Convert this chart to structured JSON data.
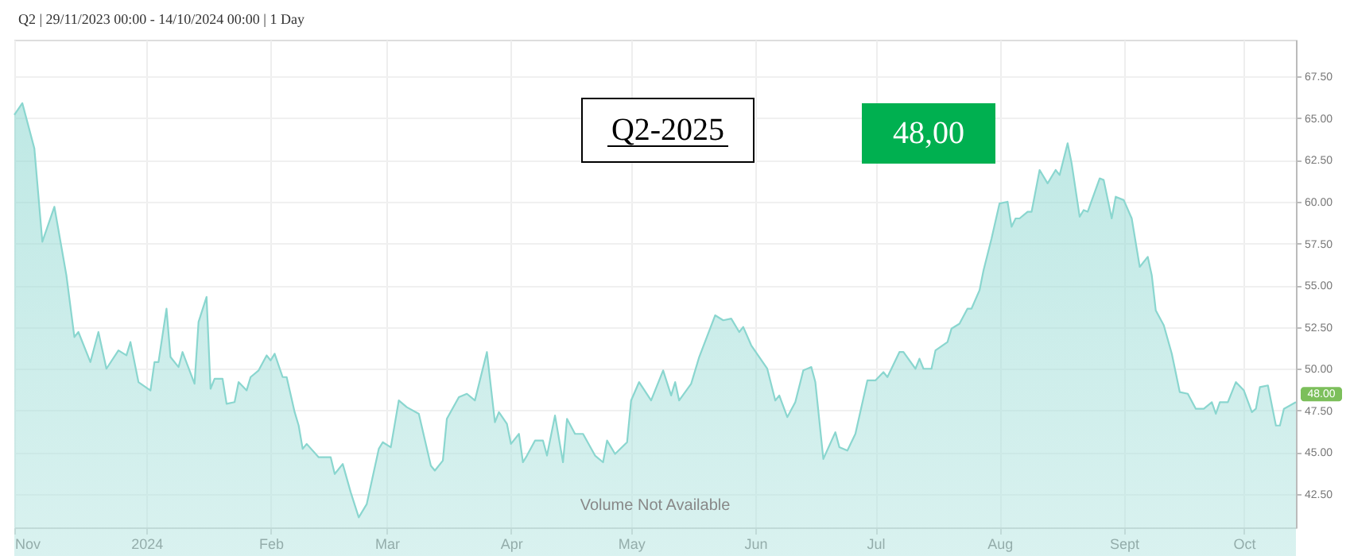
{
  "chart_data": {
    "type": "area",
    "title": "Q2 | 29/11/2023 00:00 - 14/10/2024 00:00 | 1 Day",
    "x": [
      "2023-11-29",
      "2023-12-01",
      "2023-12-04",
      "2023-12-06",
      "2023-12-09",
      "2023-12-12",
      "2023-12-14",
      "2023-12-15",
      "2023-12-18",
      "2023-12-20",
      "2023-12-22",
      "2023-12-25",
      "2023-12-27",
      "2023-12-28",
      "2023-12-30",
      "2024-01-02",
      "2024-01-03",
      "2024-01-04",
      "2024-01-06",
      "2024-01-07",
      "2024-01-09",
      "2024-01-10",
      "2024-01-13",
      "2024-01-14",
      "2024-01-16",
      "2024-01-17",
      "2024-01-18",
      "2024-01-20",
      "2024-01-21",
      "2024-01-23",
      "2024-01-24",
      "2024-01-26",
      "2024-01-27",
      "2024-01-29",
      "2024-01-31",
      "2024-02-01",
      "2024-02-02",
      "2024-02-04",
      "2024-02-05",
      "2024-02-07",
      "2024-02-08",
      "2024-02-09",
      "2024-02-10",
      "2024-02-13",
      "2024-02-16",
      "2024-02-17",
      "2024-02-19",
      "2024-02-21",
      "2024-02-23",
      "2024-02-25",
      "2024-02-28",
      "2024-02-29",
      "2024-03-02",
      "2024-03-04",
      "2024-03-06",
      "2024-03-09",
      "2024-03-12",
      "2024-03-13",
      "2024-03-15",
      "2024-03-16",
      "2024-03-19",
      "2024-03-21",
      "2024-03-23",
      "2024-03-26",
      "2024-03-28",
      "2024-03-29",
      "2024-03-31",
      "2024-04-01",
      "2024-04-03",
      "2024-04-04",
      "2024-04-05",
      "2024-04-07",
      "2024-04-09",
      "2024-04-10",
      "2024-04-12",
      "2024-04-14",
      "2024-04-15",
      "2024-04-17",
      "2024-04-19",
      "2024-04-22",
      "2024-04-24",
      "2024-04-25",
      "2024-04-27",
      "2024-04-30",
      "2024-05-01",
      "2024-05-03",
      "2024-05-06",
      "2024-05-09",
      "2024-05-11",
      "2024-05-12",
      "2024-05-13",
      "2024-05-16",
      "2024-05-18",
      "2024-05-22",
      "2024-05-24",
      "2024-05-26",
      "2024-05-28",
      "2024-05-29",
      "2024-05-31",
      "2024-06-04",
      "2024-06-06",
      "2024-06-07",
      "2024-06-09",
      "2024-06-11",
      "2024-06-13",
      "2024-06-15",
      "2024-06-16",
      "2024-06-18",
      "2024-06-21",
      "2024-06-22",
      "2024-06-24",
      "2024-06-26",
      "2024-06-29",
      "2024-07-01",
      "2024-07-03",
      "2024-07-04",
      "2024-07-07",
      "2024-07-08",
      "2024-07-11",
      "2024-07-12",
      "2024-07-13",
      "2024-07-15",
      "2024-07-16",
      "2024-07-19",
      "2024-07-20",
      "2024-07-22",
      "2024-07-24",
      "2024-07-25",
      "2024-07-27",
      "2024-07-28",
      "2024-07-30",
      "2024-08-01",
      "2024-08-03",
      "2024-08-04",
      "2024-08-05",
      "2024-08-06",
      "2024-08-08",
      "2024-08-09",
      "2024-08-11",
      "2024-08-13",
      "2024-08-15",
      "2024-08-16",
      "2024-08-18",
      "2024-08-19",
      "2024-08-21",
      "2024-08-22",
      "2024-08-23",
      "2024-08-26",
      "2024-08-27",
      "2024-08-29",
      "2024-08-30",
      "2024-09-01",
      "2024-09-03",
      "2024-09-05",
      "2024-09-07",
      "2024-09-08",
      "2024-09-09",
      "2024-09-11",
      "2024-09-13",
      "2024-09-15",
      "2024-09-17",
      "2024-09-19",
      "2024-09-21",
      "2024-09-23",
      "2024-09-24",
      "2024-09-25",
      "2024-09-27",
      "2024-09-29",
      "2024-10-01",
      "2024-10-03",
      "2024-10-04",
      "2024-10-05",
      "2024-10-07",
      "2024-10-09",
      "2024-10-10",
      "2024-10-11",
      "2024-10-14"
    ],
    "series": [
      {
        "color": "#8ad6cf",
        "values": [
          65.2,
          65.9,
          63.2,
          57.6,
          59.7,
          55.6,
          51.9,
          52.2,
          50.4,
          52.2,
          50.0,
          51.1,
          50.8,
          51.6,
          49.2,
          48.7,
          50.4,
          50.4,
          53.6,
          50.7,
          50.1,
          51.0,
          49.1,
          52.8,
          54.3,
          48.8,
          49.4,
          49.4,
          47.9,
          48.0,
          49.2,
          48.7,
          49.5,
          49.9,
          50.8,
          50.5,
          50.9,
          49.5,
          49.5,
          47.4,
          46.6,
          45.2,
          45.5,
          44.7,
          44.7,
          43.7,
          44.3,
          42.6,
          41.1,
          41.9,
          45.2,
          45.6,
          45.3,
          48.1,
          47.7,
          47.3,
          44.2,
          43.9,
          44.5,
          47.0,
          48.3,
          48.5,
          48.1,
          51.0,
          46.8,
          47.4,
          46.7,
          45.5,
          46.1,
          44.4,
          44.8,
          45.7,
          45.7,
          44.8,
          47.2,
          44.4,
          47.0,
          46.1,
          46.1,
          44.8,
          44.4,
          45.7,
          44.9,
          45.6,
          48.1,
          49.2,
          48.1,
          49.9,
          48.4,
          49.2,
          48.1,
          49.1,
          50.7,
          53.2,
          52.9,
          53.0,
          52.2,
          52.5,
          51.4,
          50.0,
          48.1,
          48.4,
          47.1,
          48.0,
          49.9,
          50.1,
          49.2,
          44.6,
          46.2,
          45.3,
          45.1,
          46.1,
          49.3,
          49.3,
          49.8,
          49.5,
          51.0,
          51.0,
          50.0,
          50.6,
          50.0,
          50.0,
          51.1,
          51.6,
          52.4,
          52.7,
          53.6,
          53.6,
          54.7,
          55.9,
          57.8,
          59.9,
          60.0,
          58.5,
          59.0,
          59.0,
          59.4,
          59.4,
          61.9,
          61.1,
          61.9,
          61.6,
          63.5,
          62.3,
          59.1,
          59.5,
          59.4,
          61.4,
          61.3,
          59.0,
          60.3,
          60.1,
          59.0,
          56.1,
          56.7,
          55.6,
          53.5,
          52.6,
          50.9,
          48.6,
          48.5,
          47.6,
          47.6,
          48.0,
          47.3,
          48.0,
          48.0,
          49.2,
          48.7,
          47.4,
          47.6,
          48.9,
          49.0,
          46.6,
          46.6,
          47.6,
          48.0
        ]
      }
    ],
    "xlim": [
      "2023-11-29",
      "2024-10-14"
    ],
    "xticks": [
      {
        "value": "2023-11-29",
        "label": "Nov"
      },
      {
        "value": "2024-01-01",
        "label": "2024"
      },
      {
        "value": "2024-02-01",
        "label": "Feb"
      },
      {
        "value": "2024-03-01",
        "label": "Mar"
      },
      {
        "value": "2024-04-01",
        "label": "Apr"
      },
      {
        "value": "2024-05-01",
        "label": "May"
      },
      {
        "value": "2024-06-01",
        "label": "Jun"
      },
      {
        "value": "2024-07-01",
        "label": "Jul"
      },
      {
        "value": "2024-08-01",
        "label": "Aug"
      },
      {
        "value": "2024-09-01",
        "label": "Sept"
      },
      {
        "value": "2024-10-01",
        "label": "Oct"
      }
    ],
    "ylim": [
      40.5,
      69.7
    ],
    "yticks": [
      {
        "value": 42.5,
        "label": "42.50"
      },
      {
        "value": 45,
        "label": "45.00"
      },
      {
        "value": 47.5,
        "label": "47.50"
      },
      {
        "value": 50,
        "label": "50.00"
      },
      {
        "value": 52.5,
        "label": "52.50"
      },
      {
        "value": 55,
        "label": "55.00"
      },
      {
        "value": 57.5,
        "label": "57.50"
      },
      {
        "value": 60,
        "label": "60.00"
      },
      {
        "value": 62.5,
        "label": "62.50"
      },
      {
        "value": 65,
        "label": "65.00"
      },
      {
        "value": 67.5,
        "label": "67.50"
      }
    ],
    "grid": true,
    "annotations": [
      "Q2-2025",
      "48,00",
      "Volume Not Available",
      {
        "text": "48.00",
        "x": "2024-10-14",
        "y": 48.0
      }
    ]
  }
}
